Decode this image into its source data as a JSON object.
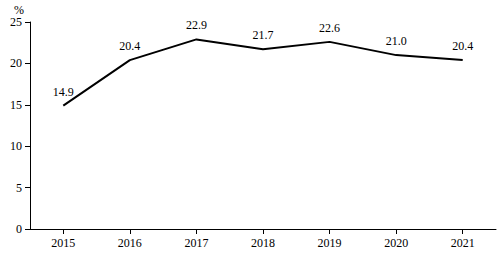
{
  "chart_data": {
    "type": "line",
    "ylabel": "%",
    "categories": [
      "2015",
      "2016",
      "2017",
      "2018",
      "2019",
      "2020",
      "2021"
    ],
    "values": [
      14.9,
      20.4,
      22.9,
      21.7,
      22.6,
      21.0,
      20.4
    ],
    "value_labels": [
      "14.9",
      "20.4",
      "22.9",
      "21.7",
      "22.6",
      "21.0",
      "20.4"
    ],
    "color": "#000000",
    "ylim": [
      0,
      25
    ],
    "yticks": [
      0,
      5,
      10,
      15,
      20,
      25
    ],
    "grid": false,
    "data_labels": true
  }
}
